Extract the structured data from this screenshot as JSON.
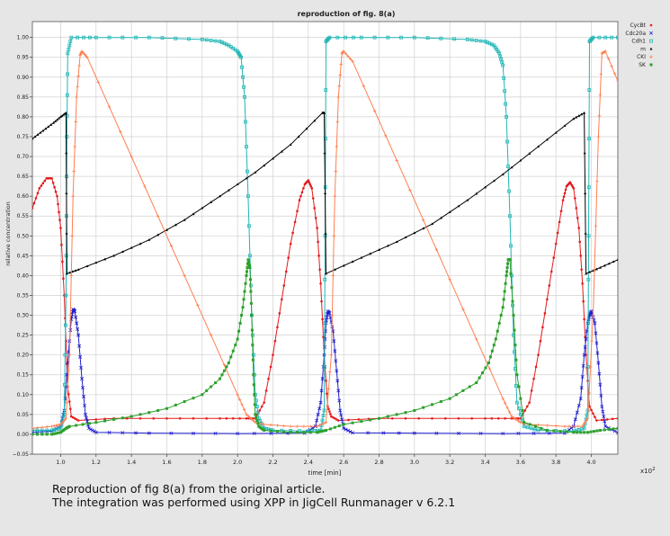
{
  "chart_data": {
    "type": "line",
    "title": "reproduction of fig. 8(a)",
    "xlabel": "time [min]",
    "ylabel": "relative concentration",
    "x_multiplier": "x10",
    "x_multiplier_exp": "2",
    "xlim": [
      0.84,
      4.15
    ],
    "ylim": [
      -0.05,
      1.04
    ],
    "grid": true,
    "legend_position": "top-right",
    "xticks": [
      1.0,
      1.2,
      1.4,
      1.6,
      1.8,
      2.0,
      2.2,
      2.4,
      2.6,
      2.8,
      3.0,
      3.2,
      3.4,
      3.6,
      3.8,
      4.0
    ],
    "xtick_labels": [
      "1.0",
      "1.2",
      "1.4",
      "1.6",
      "1.8",
      "2.0",
      "2.2",
      "2.4",
      "2.6",
      "2.8",
      "3.0",
      "3.2",
      "3.4",
      "3.6",
      "3.8",
      "4.0"
    ],
    "yticks": [
      -0.05,
      0.0,
      0.05,
      0.1,
      0.15,
      0.2,
      0.25,
      0.3,
      0.35,
      0.4,
      0.45,
      0.5,
      0.55,
      0.6,
      0.65,
      0.7,
      0.75,
      0.8,
      0.85,
      0.9,
      0.95,
      1.0
    ],
    "ytick_labels": [
      "−0.05",
      "0.00",
      "0.05",
      "0.10",
      "0.15",
      "0.20",
      "0.25",
      "0.30",
      "0.35",
      "0.40",
      "0.45",
      "0.50",
      "0.55",
      "0.60",
      "0.65",
      "0.70",
      "0.75",
      "0.80",
      "0.85",
      "0.90",
      "0.95",
      "1.00"
    ],
    "series": [
      {
        "name": "CycBt",
        "color": "#e41a1c",
        "marker": "dot",
        "x": [
          0.84,
          0.88,
          0.92,
          0.95,
          0.98,
          1.0,
          1.02,
          1.04,
          1.06,
          1.1,
          1.3,
          1.6,
          1.9,
          2.05,
          2.1,
          2.15,
          2.2,
          2.25,
          2.3,
          2.35,
          2.38,
          2.4,
          2.42,
          2.45,
          2.47,
          2.49,
          2.51,
          2.53,
          2.57,
          2.8,
          3.1,
          3.4,
          3.55,
          3.6,
          3.65,
          3.7,
          3.75,
          3.8,
          3.84,
          3.86,
          3.88,
          3.9,
          3.93,
          3.95,
          3.97,
          3.99,
          4.03,
          4.15
        ],
        "y": [
          0.57,
          0.62,
          0.645,
          0.645,
          0.6,
          0.52,
          0.35,
          0.12,
          0.045,
          0.035,
          0.04,
          0.04,
          0.04,
          0.04,
          0.04,
          0.08,
          0.2,
          0.34,
          0.48,
          0.59,
          0.63,
          0.64,
          0.62,
          0.52,
          0.38,
          0.2,
          0.07,
          0.045,
          0.035,
          0.04,
          0.04,
          0.04,
          0.04,
          0.04,
          0.08,
          0.2,
          0.34,
          0.48,
          0.59,
          0.625,
          0.635,
          0.62,
          0.52,
          0.38,
          0.2,
          0.07,
          0.035,
          0.04
        ]
      },
      {
        "name": "Cdc20a",
        "color": "#1f1fcf",
        "marker": "x",
        "x": [
          0.84,
          0.95,
          1.0,
          1.02,
          1.04,
          1.06,
          1.07,
          1.08,
          1.1,
          1.12,
          1.14,
          1.16,
          1.2,
          1.5,
          2.0,
          2.38,
          2.44,
          2.47,
          2.49,
          2.5,
          2.51,
          2.52,
          2.54,
          2.56,
          2.58,
          2.6,
          2.65,
          3.0,
          3.5,
          3.85,
          3.9,
          3.94,
          3.96,
          3.98,
          3.99,
          4.0,
          4.02,
          4.04,
          4.06,
          4.08,
          4.15
        ],
        "y": [
          0.005,
          0.008,
          0.02,
          0.06,
          0.18,
          0.29,
          0.315,
          0.31,
          0.25,
          0.14,
          0.05,
          0.015,
          0.005,
          0.003,
          0.002,
          0.003,
          0.02,
          0.08,
          0.2,
          0.28,
          0.31,
          0.305,
          0.26,
          0.16,
          0.06,
          0.015,
          0.004,
          0.003,
          0.002,
          0.003,
          0.02,
          0.09,
          0.2,
          0.28,
          0.3,
          0.31,
          0.28,
          0.18,
          0.07,
          0.02,
          0.004
        ]
      },
      {
        "name": "Cdh1",
        "color": "#1fb5b5",
        "marker": "square",
        "x": [
          0.84,
          0.95,
          1.0,
          1.02,
          1.03,
          1.035,
          1.04,
          1.06,
          1.2,
          1.5,
          1.8,
          1.9,
          1.95,
          2.0,
          2.02,
          2.04,
          2.06,
          2.08,
          2.1,
          2.12,
          2.15,
          2.2,
          2.4,
          2.47,
          2.49,
          2.495,
          2.5,
          2.52,
          2.7,
          3.0,
          3.3,
          3.4,
          3.45,
          3.48,
          3.5,
          3.52,
          3.54,
          3.56,
          3.58,
          3.62,
          3.7,
          3.9,
          3.96,
          3.98,
          3.985,
          3.99,
          4.01,
          4.15
        ],
        "y": [
          0.01,
          0.01,
          0.015,
          0.05,
          0.35,
          0.75,
          0.96,
          1.0,
          1.0,
          1.0,
          0.995,
          0.99,
          0.98,
          0.965,
          0.95,
          0.85,
          0.6,
          0.3,
          0.1,
          0.04,
          0.015,
          0.01,
          0.008,
          0.01,
          0.06,
          0.5,
          0.99,
          1.0,
          1.0,
          1.0,
          0.995,
          0.99,
          0.98,
          0.96,
          0.93,
          0.8,
          0.55,
          0.25,
          0.08,
          0.02,
          0.01,
          0.008,
          0.015,
          0.06,
          0.5,
          0.99,
          1.0,
          1.0
        ]
      },
      {
        "name": "m",
        "color": "#000000",
        "marker": "triangle",
        "x": [
          0.84,
          0.9,
          0.96,
          1.0,
          1.03,
          1.035,
          1.1,
          1.3,
          1.5,
          1.7,
          1.9,
          2.1,
          2.3,
          2.48,
          2.49,
          2.5,
          2.7,
          2.9,
          3.1,
          3.3,
          3.5,
          3.7,
          3.9,
          3.96,
          3.97,
          4.05,
          4.15
        ],
        "y": [
          0.745,
          0.765,
          0.785,
          0.8,
          0.81,
          0.405,
          0.415,
          0.45,
          0.49,
          0.54,
          0.6,
          0.66,
          0.73,
          0.81,
          0.81,
          0.405,
          0.445,
          0.485,
          0.53,
          0.59,
          0.655,
          0.725,
          0.795,
          0.81,
          0.405,
          0.42,
          0.44
        ]
      },
      {
        "name": "CKI",
        "color": "#ff7f50",
        "marker": "plus",
        "x": [
          0.84,
          0.95,
          1.0,
          1.03,
          1.05,
          1.07,
          1.09,
          1.11,
          1.12,
          1.15,
          1.4,
          1.7,
          2.0,
          2.05,
          2.1,
          2.15,
          2.3,
          2.45,
          2.5,
          2.53,
          2.55,
          2.57,
          2.59,
          2.6,
          2.65,
          2.9,
          3.2,
          3.5,
          3.55,
          3.6,
          3.65,
          3.85,
          3.95,
          3.98,
          4.01,
          4.04,
          4.06,
          4.08,
          4.15
        ],
        "y": [
          0.015,
          0.02,
          0.025,
          0.04,
          0.2,
          0.6,
          0.85,
          0.955,
          0.965,
          0.95,
          0.7,
          0.4,
          0.1,
          0.05,
          0.03,
          0.025,
          0.02,
          0.02,
          0.03,
          0.2,
          0.6,
          0.85,
          0.96,
          0.965,
          0.94,
          0.69,
          0.39,
          0.09,
          0.045,
          0.03,
          0.025,
          0.02,
          0.02,
          0.04,
          0.3,
          0.75,
          0.96,
          0.965,
          0.89
        ]
      },
      {
        "name": "SK",
        "color": "#2ca02c",
        "marker": "square-filled",
        "x": [
          0.84,
          0.95,
          1.0,
          1.03,
          1.05,
          1.2,
          1.4,
          1.6,
          1.8,
          1.9,
          1.95,
          2.0,
          2.03,
          2.05,
          2.06,
          2.07,
          2.08,
          2.09,
          2.1,
          2.12,
          2.15,
          2.3,
          2.45,
          2.5,
          2.6,
          2.8,
          3.0,
          3.2,
          3.35,
          3.42,
          3.46,
          3.5,
          3.52,
          3.53,
          3.54,
          3.56,
          3.58,
          3.62,
          3.75,
          3.9,
          3.98,
          4.05,
          4.15
        ],
        "y": [
          0.0,
          0.0,
          0.005,
          0.015,
          0.02,
          0.03,
          0.045,
          0.065,
          0.1,
          0.14,
          0.18,
          0.24,
          0.32,
          0.4,
          0.44,
          0.42,
          0.3,
          0.15,
          0.05,
          0.02,
          0.01,
          0.005,
          0.005,
          0.01,
          0.025,
          0.04,
          0.06,
          0.09,
          0.13,
          0.18,
          0.24,
          0.32,
          0.4,
          0.44,
          0.44,
          0.3,
          0.15,
          0.03,
          0.01,
          0.005,
          0.005,
          0.01,
          0.015
        ]
      }
    ]
  },
  "caption": {
    "line1": "Reproduction of fig 8(a) from the original article.",
    "line2": "The integration was performed using XPP in JigCell Runmanager v 6.2.1"
  }
}
